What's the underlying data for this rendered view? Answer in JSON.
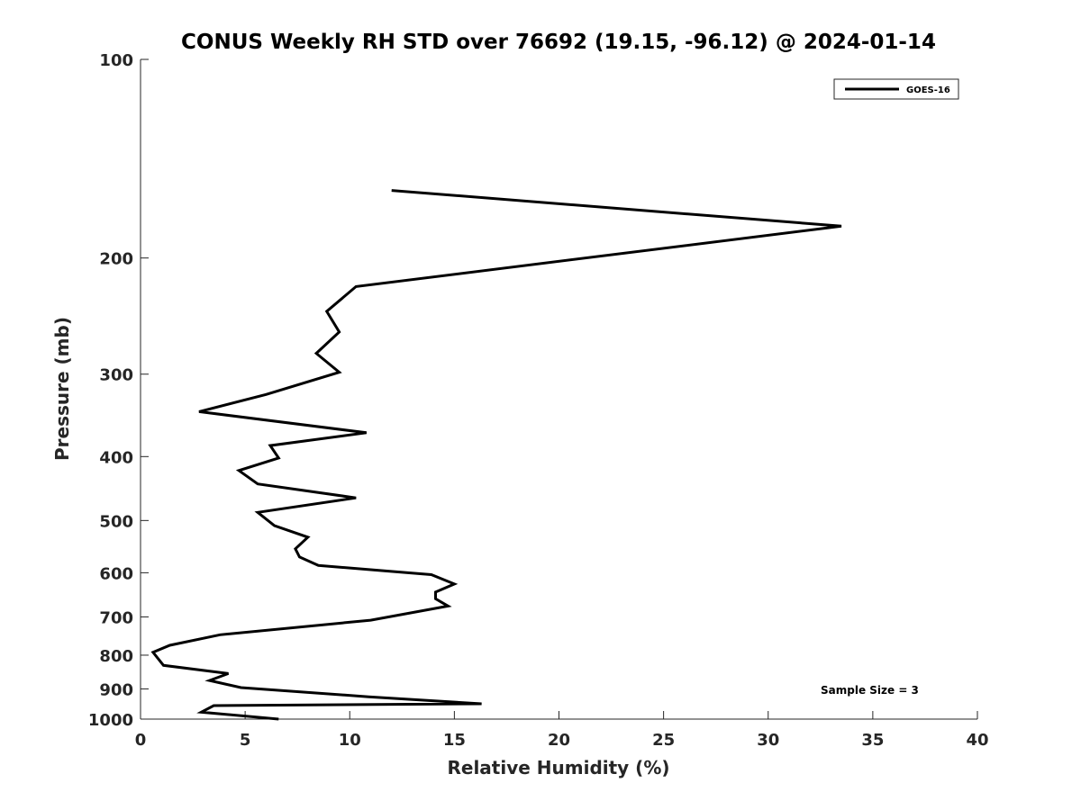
{
  "chart_data": {
    "type": "line",
    "title": "CONUS Weekly RH STD over 76692 (19.15, -96.12) @ 2024-01-14",
    "xlabel": "Relative Humidity (%)",
    "ylabel": "Pressure (mb)",
    "xlim": [
      0,
      40
    ],
    "ylim": [
      100,
      1000
    ],
    "y_scale": "log",
    "y_reversed": true,
    "x_ticks": [
      0,
      5,
      10,
      15,
      20,
      25,
      30,
      35,
      40
    ],
    "x_tick_labels": [
      "0",
      "5",
      "10",
      "15",
      "20",
      "25",
      "30",
      "35",
      "40"
    ],
    "y_ticks": [
      100,
      200,
      300,
      400,
      500,
      600,
      700,
      800,
      900,
      1000
    ],
    "y_tick_labels": [
      "100",
      "200",
      "300",
      "400",
      "500",
      "600",
      "700",
      "800",
      "900",
      "1000"
    ],
    "grid": false,
    "legend_position": "top-right",
    "series": [
      {
        "name": "GOES-16",
        "color": "#000000",
        "points": [
          [
            12.0,
            158
          ],
          [
            33.5,
            179
          ],
          [
            10.3,
            221
          ],
          [
            8.9,
            241
          ],
          [
            9.5,
            259
          ],
          [
            8.4,
            279
          ],
          [
            9.5,
            298
          ],
          [
            6.0,
            322
          ],
          [
            2.8,
            342
          ],
          [
            10.8,
            368
          ],
          [
            6.2,
            385
          ],
          [
            6.6,
            402
          ],
          [
            4.7,
            420
          ],
          [
            5.6,
            440
          ],
          [
            10.3,
            462
          ],
          [
            5.6,
            486
          ],
          [
            6.4,
            509
          ],
          [
            8.0,
            530
          ],
          [
            7.4,
            552
          ],
          [
            7.6,
            568
          ],
          [
            8.5,
            585
          ],
          [
            13.9,
            604
          ],
          [
            15.0,
            624
          ],
          [
            14.1,
            642
          ],
          [
            14.1,
            657
          ],
          [
            14.7,
            674
          ],
          [
            11.0,
            708
          ],
          [
            3.8,
            745
          ],
          [
            1.4,
            773
          ],
          [
            0.6,
            792
          ],
          [
            1.1,
            829
          ],
          [
            4.2,
            853
          ],
          [
            3.3,
            874
          ],
          [
            4.8,
            896
          ],
          [
            10.9,
            925
          ],
          [
            16.3,
            948
          ],
          [
            3.5,
            954
          ],
          [
            2.9,
            976
          ],
          [
            6.6,
            1000
          ]
        ]
      }
    ],
    "annotations": [
      "Sample Size = 3"
    ]
  }
}
